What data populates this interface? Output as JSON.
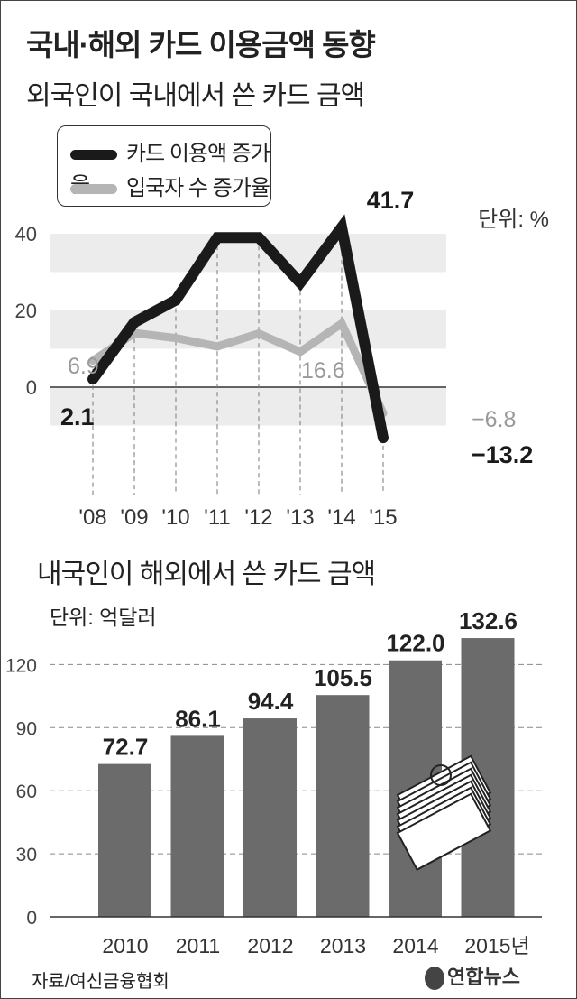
{
  "title": "국내·해외 카드 이용금액 동향",
  "source": "자료/여신금융협회",
  "logo": "연합뉴스",
  "chart_data": [
    {
      "type": "line",
      "title": "외국인이 국내에서 쓴 카드 금액",
      "unit": "단위: %",
      "categories": [
        "'08",
        "'09",
        "'10",
        "'11",
        "'12",
        "'13",
        "'14",
        "'15"
      ],
      "ylim": [
        -10,
        40
      ],
      "yticks": [
        0,
        20,
        40
      ],
      "series": [
        {
          "name": "카드 이용액 증가율",
          "color": "#1a1a1a",
          "values": [
            2.1,
            16.9,
            22.7,
            39.0,
            39.0,
            27.2,
            41.7,
            -13.2
          ],
          "labels": {
            "0": "2.1",
            "6": "41.7",
            "7": "−13.2"
          }
        },
        {
          "name": "입국자 수 증가율",
          "color": "#b5b5b5",
          "values": [
            6.9,
            14.1,
            12.8,
            10.6,
            14.0,
            9.2,
            16.6,
            -6.8
          ],
          "labels": {
            "0": "6.9",
            "6": "16.6",
            "7": "−6.8"
          }
        }
      ]
    },
    {
      "type": "bar",
      "title": "내국인이 해외에서 쓴 카드 금액",
      "unit": "단위: 억달러",
      "categories": [
        "2010",
        "2011",
        "2012",
        "2013",
        "2014",
        "2015년"
      ],
      "values": [
        72.7,
        86.1,
        94.4,
        105.5,
        122.0,
        132.6
      ],
      "value_labels": [
        "72.7",
        "86.1",
        "94.4",
        "105.5",
        "122.0",
        "132.6"
      ],
      "ylim": [
        0,
        140
      ],
      "yticks": [
        0,
        30,
        60,
        90,
        120
      ],
      "bar_color": "#6b6b6b"
    }
  ]
}
